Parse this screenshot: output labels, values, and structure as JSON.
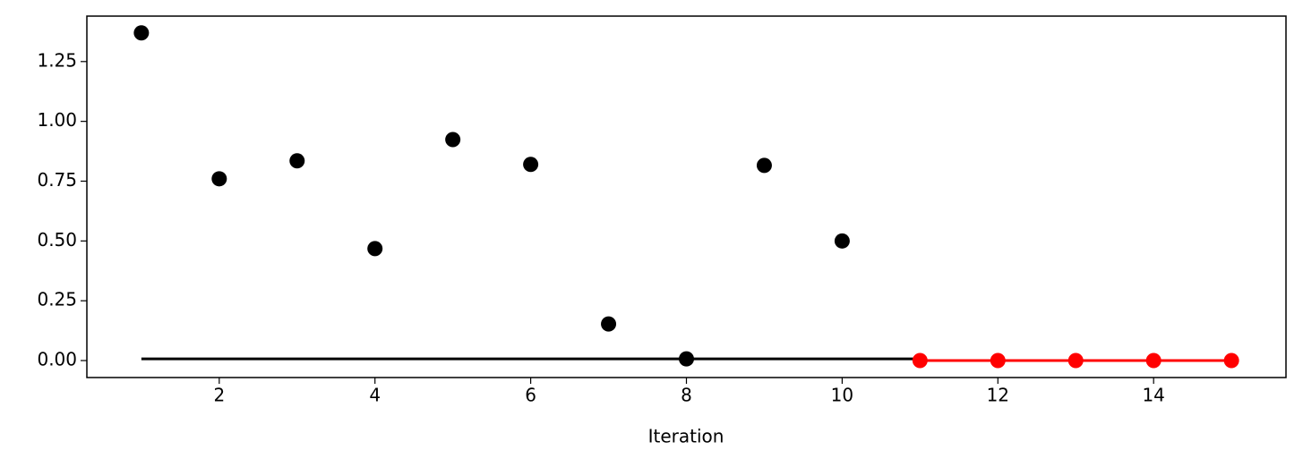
{
  "chart_data": {
    "type": "scatter",
    "xlabel": "Iteration",
    "xlim": [
      0.3,
      15.7
    ],
    "ylim": [
      -0.071,
      1.44
    ],
    "xticks": [
      2,
      4,
      6,
      8,
      10,
      12,
      14
    ],
    "yticks": [
      {
        "value": 0,
        "label": "0.00"
      },
      {
        "value": 0.25,
        "label": "0.25"
      },
      {
        "value": 0.5,
        "label": "0.50"
      },
      {
        "value": 0.75,
        "label": "0.75"
      },
      {
        "value": 1,
        "label": "1.00"
      },
      {
        "value": 1.25,
        "label": "1.25"
      }
    ],
    "series": [
      {
        "color": "#000000",
        "mode": "markers",
        "x": [
          1,
          2,
          3,
          4,
          5,
          6,
          7,
          8,
          9,
          10
        ],
        "values": [
          1.37,
          0.76,
          0.835,
          0.468,
          0.924,
          0.82,
          0.153,
          0.007,
          0.816,
          0.5
        ]
      },
      {
        "color": "#000000",
        "mode": "line",
        "x": [
          1,
          11
        ],
        "values": [
          0.007,
          0.007
        ]
      },
      {
        "color": "#ff0000",
        "mode": "line+markers",
        "x": [
          11,
          12,
          13,
          14,
          15
        ],
        "values": [
          0,
          0,
          0,
          0,
          0
        ]
      }
    ]
  }
}
